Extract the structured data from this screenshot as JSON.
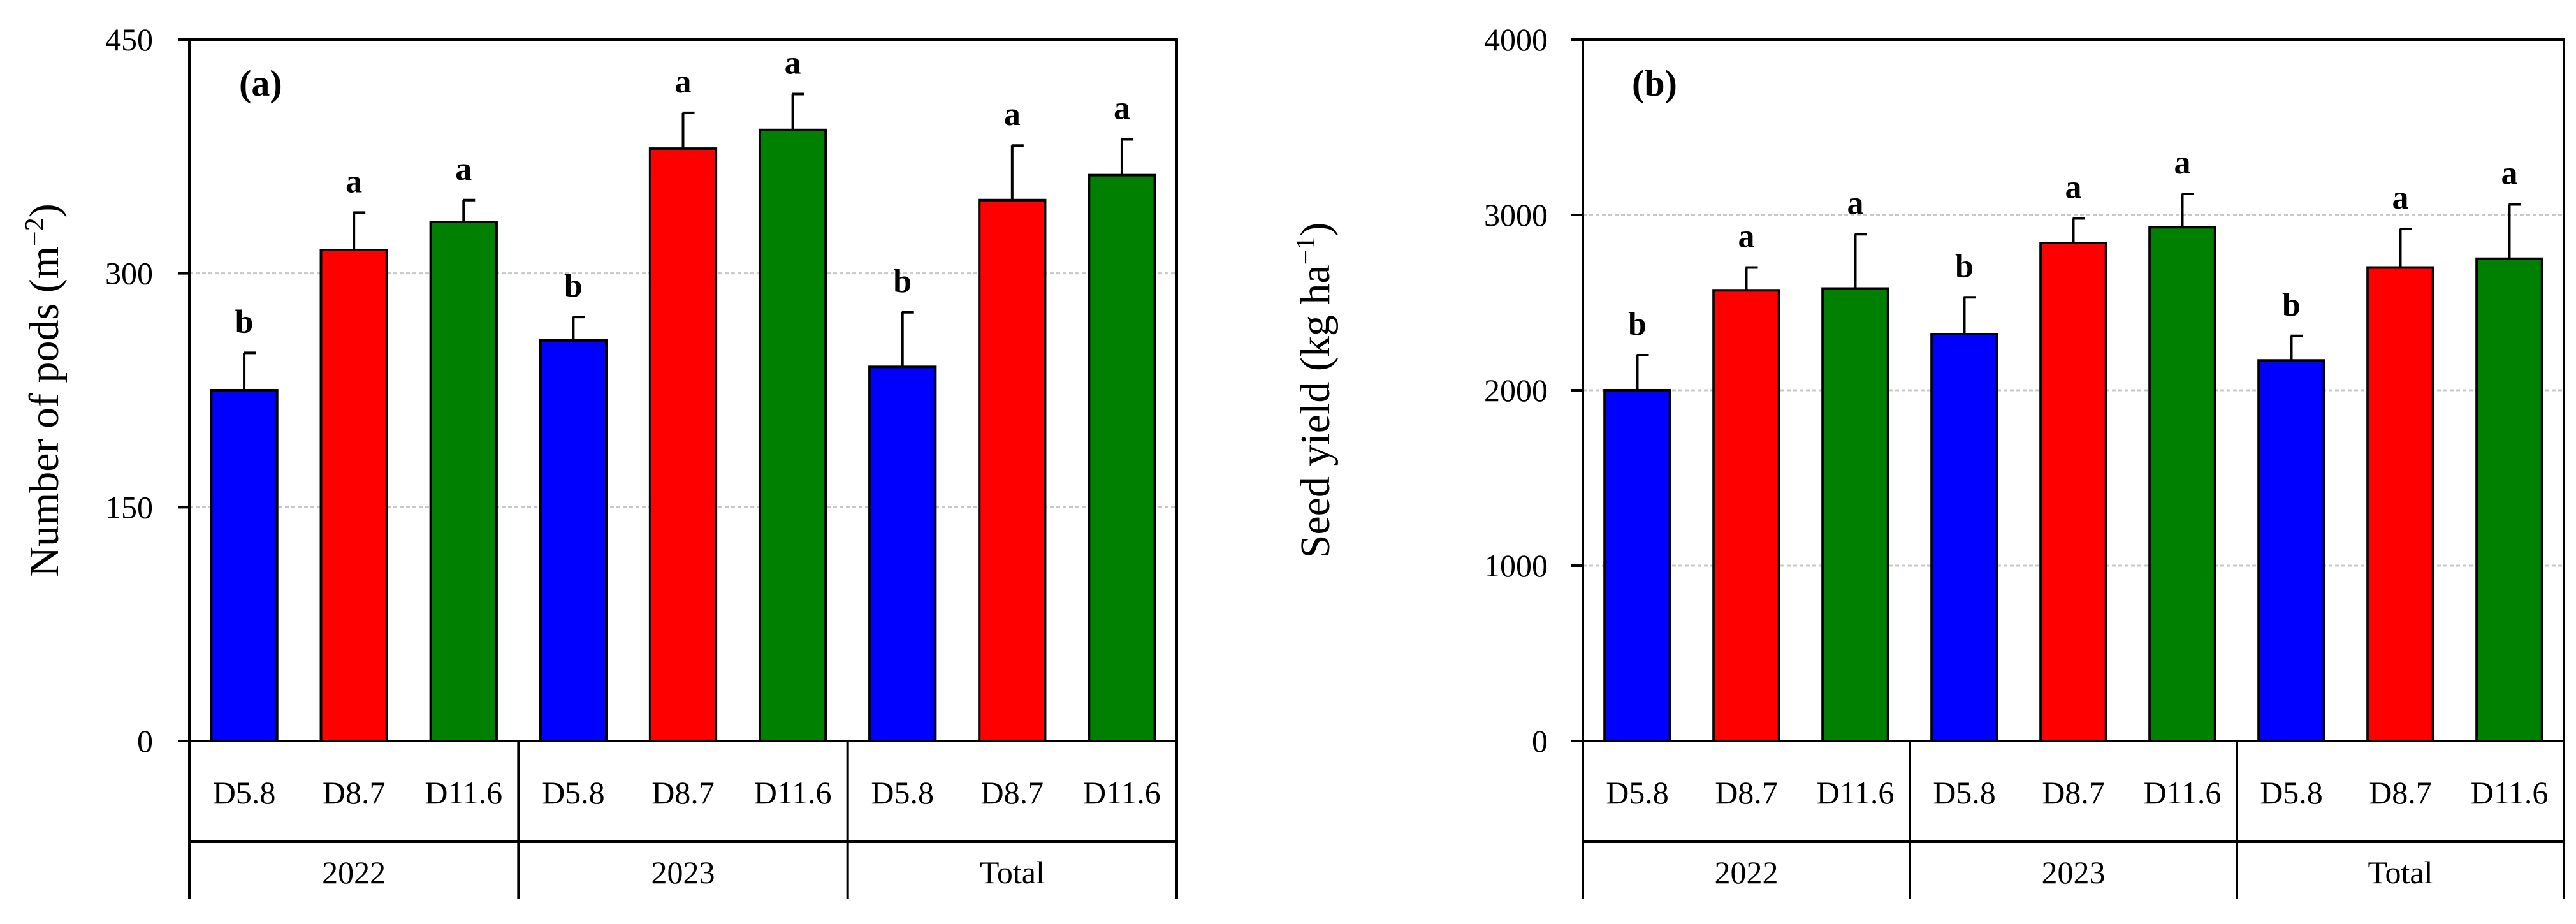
{
  "chart_data": [
    {
      "type": "bar",
      "panel_label": "(a)",
      "title": "",
      "ylabel": "Number of pods",
      "ylabel_unit": "(m",
      "ylabel_sup": "−2",
      "ylabel_close": ")",
      "ylim": [
        0,
        450
      ],
      "yticks": [
        0,
        150,
        300,
        450
      ],
      "groups": [
        "2022",
        "2023",
        "Total"
      ],
      "categories": [
        "D5.8",
        "D8.7",
        "D11.6",
        "D5.8",
        "D8.7",
        "D11.6",
        "D5.8",
        "D8.7",
        "D11.6"
      ],
      "values": [
        225,
        315,
        333,
        257,
        380,
        392,
        240,
        347,
        363
      ],
      "errors": [
        24,
        24,
        14,
        15,
        23,
        23,
        35,
        35,
        23
      ],
      "letters": [
        "b",
        "a",
        "a",
        "b",
        "a",
        "a",
        "b",
        "a",
        "a"
      ],
      "colors": [
        "#0000ff",
        "#ff0000",
        "#008000",
        "#0000ff",
        "#ff0000",
        "#008000",
        "#0000ff",
        "#ff0000",
        "#008000"
      ],
      "grid": true
    },
    {
      "type": "bar",
      "panel_label": "(b)",
      "title": "",
      "ylabel": "Seed yield",
      "ylabel_unit": "(kg ha",
      "ylabel_sup": "−1",
      "ylabel_close": ")",
      "ylim": [
        0,
        4000
      ],
      "yticks": [
        0,
        1000,
        2000,
        3000,
        4000
      ],
      "groups": [
        "2022",
        "2023",
        "Total"
      ],
      "categories": [
        "D5.8",
        "D8.7",
        "D11.6",
        "D5.8",
        "D8.7",
        "D11.6",
        "D5.8",
        "D8.7",
        "D11.6"
      ],
      "values": [
        2000,
        2570,
        2580,
        2320,
        2840,
        2930,
        2170,
        2700,
        2750
      ],
      "errors": [
        200,
        130,
        310,
        210,
        140,
        190,
        140,
        220,
        310
      ],
      "letters": [
        "b",
        "a",
        "a",
        "b",
        "a",
        "a",
        "b",
        "a",
        "a"
      ],
      "colors": [
        "#0000ff",
        "#ff0000",
        "#008000",
        "#0000ff",
        "#ff0000",
        "#008000",
        "#0000ff",
        "#ff0000",
        "#008000"
      ],
      "grid": true
    }
  ]
}
